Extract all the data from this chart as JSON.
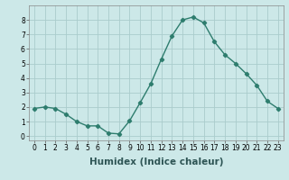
{
  "x": [
    0,
    1,
    2,
    3,
    4,
    5,
    6,
    7,
    8,
    9,
    10,
    11,
    12,
    13,
    14,
    15,
    16,
    17,
    18,
    19,
    20,
    21,
    22,
    23
  ],
  "y": [
    1.9,
    2.0,
    1.9,
    1.5,
    1.0,
    0.7,
    0.7,
    0.2,
    0.15,
    1.05,
    2.3,
    3.6,
    5.3,
    6.9,
    8.0,
    8.2,
    7.8,
    6.5,
    5.6,
    5.0,
    4.3,
    3.5,
    2.4,
    1.9
  ],
  "line_color": "#2e7d6e",
  "marker": "D",
  "marker_size": 2.2,
  "bg_color": "#cce8e8",
  "grid_color": "#aacccc",
  "xlabel": "Humidex (Indice chaleur)",
  "xlim": [
    -0.5,
    23.5
  ],
  "ylim": [
    -0.3,
    9.0
  ],
  "yticks": [
    0,
    1,
    2,
    3,
    4,
    5,
    6,
    7,
    8
  ],
  "xticks": [
    0,
    1,
    2,
    3,
    4,
    5,
    6,
    7,
    8,
    9,
    10,
    11,
    12,
    13,
    14,
    15,
    16,
    17,
    18,
    19,
    20,
    21,
    22,
    23
  ],
  "tick_fontsize": 5.5,
  "xlabel_fontsize": 7.5,
  "line_width": 1.0
}
